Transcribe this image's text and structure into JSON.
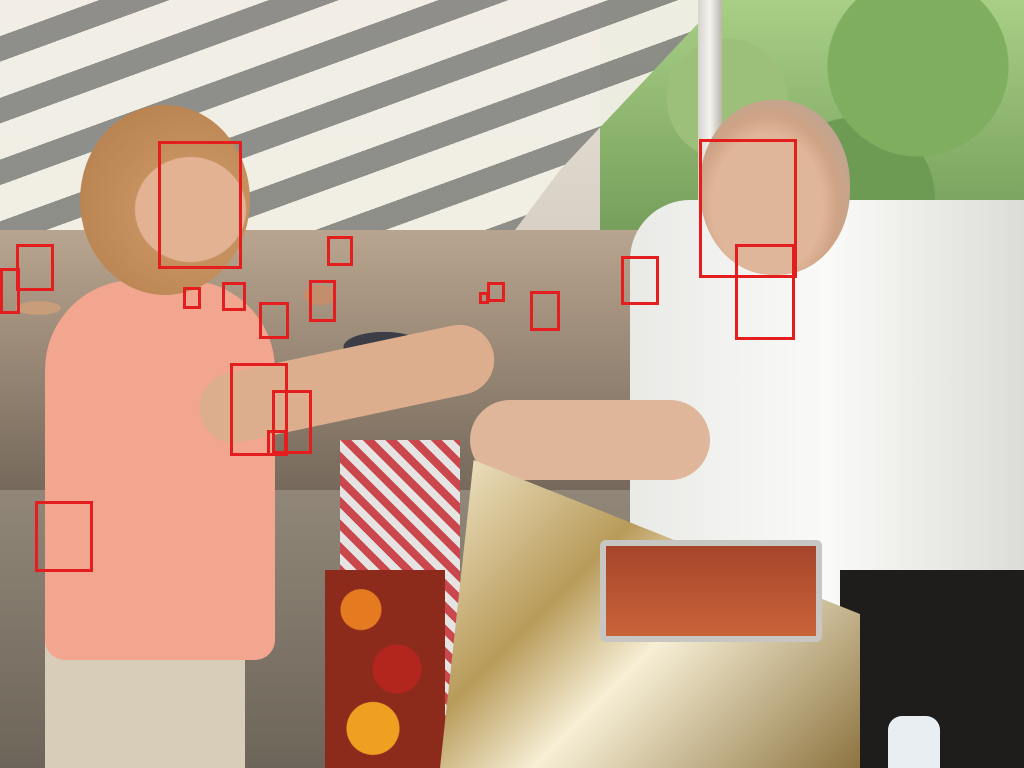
{
  "scene": {
    "description_icon": "photo-icon",
    "box_color": "#e41e1e"
  },
  "boxes": [
    {
      "id": "face-1"
    },
    {
      "id": "face-2"
    },
    {
      "id": "face-3"
    },
    {
      "id": "face-4"
    },
    {
      "id": "face-5"
    },
    {
      "id": "face-6"
    },
    {
      "id": "face-7"
    },
    {
      "id": "face-8"
    },
    {
      "id": "face-9"
    },
    {
      "id": "face-10"
    },
    {
      "id": "face-11"
    },
    {
      "id": "face-12"
    },
    {
      "id": "face-13"
    },
    {
      "id": "face-14"
    },
    {
      "id": "face-15"
    },
    {
      "id": "face-16"
    },
    {
      "id": "face-17"
    },
    {
      "id": "face-18"
    }
  ]
}
